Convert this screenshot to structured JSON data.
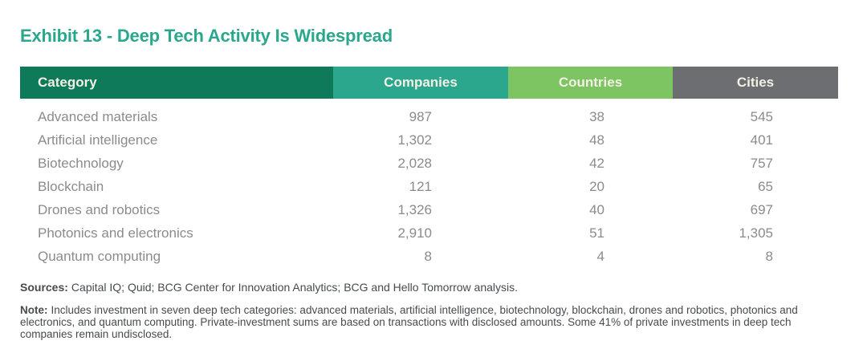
{
  "title": "Exhibit 13 - Deep Tech Activity Is Widespread",
  "table": {
    "columns": {
      "category": "Category",
      "companies": "Companies",
      "countries": "Countries",
      "cities": "Cities"
    },
    "rows": [
      {
        "category": "Advanced materials",
        "companies": "987",
        "countries": "38",
        "cities": "545"
      },
      {
        "category": "Artificial intelligence",
        "companies": "1,302",
        "countries": "48",
        "cities": "401"
      },
      {
        "category": "Biotechnology",
        "companies": "2,028",
        "countries": "42",
        "cities": "757"
      },
      {
        "category": "Blockchain",
        "companies": "121",
        "countries": "20",
        "cities": "65"
      },
      {
        "category": "Drones and robotics",
        "companies": "1,326",
        "countries": "40",
        "cities": "697"
      },
      {
        "category": "Photonics and electronics",
        "companies": "2,910",
        "countries": "51",
        "cities": "1,305"
      },
      {
        "category": "Quantum computing",
        "companies": "8",
        "countries": "4",
        "cities": "8"
      }
    ]
  },
  "sources": {
    "label": "Sources:",
    "text": "Capital IQ; Quid; BCG Center for Innovation Analytics; BCG and Hello Tomorrow analysis."
  },
  "note": {
    "label": "Note:",
    "text": "Includes investment in seven deep tech categories: advanced materials, artificial intelligence, biotechnology, blockchain, drones and robotics, photonics and electronics, and quantum computing. Private-investment sums are based on transactions with disclosed amounts. Some 41% of private investments in deep tech companies remain undisclosed."
  },
  "colors": {
    "title_teal": "#2aa78c",
    "header_category_green": "#0e7a59",
    "header_companies_teal": "#2aa78c",
    "header_countries_green": "#7dc462",
    "header_cities_gray": "#6d6e71",
    "header_text_cream": "#f3f0e6",
    "row_text_gray": "#8a8b8d",
    "footnote_text": "#474b4d"
  },
  "chart_data": {
    "type": "table",
    "title": "Exhibit 13 - Deep Tech Activity Is Widespread",
    "columns": [
      "Category",
      "Companies",
      "Countries",
      "Cities"
    ],
    "rows": [
      [
        "Advanced materials",
        987,
        38,
        545
      ],
      [
        "Artificial intelligence",
        1302,
        48,
        401
      ],
      [
        "Biotechnology",
        2028,
        42,
        757
      ],
      [
        "Blockchain",
        121,
        20,
        65
      ],
      [
        "Drones and robotics",
        1326,
        40,
        697
      ],
      [
        "Photonics and electronics",
        2910,
        51,
        1305
      ],
      [
        "Quantum computing",
        8,
        4,
        8
      ]
    ],
    "notes": "Seven deep tech categories; private-investment sums based on transactions with disclosed amounts; some 41% of private investments remain undisclosed."
  }
}
